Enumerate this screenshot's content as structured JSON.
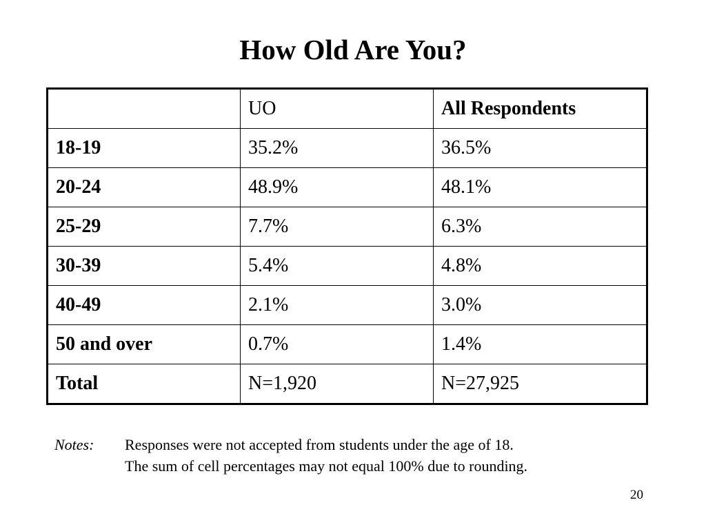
{
  "slide": {
    "title": "How Old Are You?",
    "page_number": "20"
  },
  "table": {
    "headers": [
      "",
      "UO",
      "All Respondents"
    ],
    "rows": [
      {
        "label": "18-19",
        "uo": "35.2%",
        "all": "36.5%"
      },
      {
        "label": "20-24",
        "uo": "48.9%",
        "all": "48.1%"
      },
      {
        "label": "25-29",
        "uo": "7.7%",
        "all": "6.3%"
      },
      {
        "label": "30-39",
        "uo": "5.4%",
        "all": "4.8%"
      },
      {
        "label": "40-49",
        "uo": "2.1%",
        "all": "3.0%"
      },
      {
        "label": "50 and over",
        "uo": "0.7%",
        "all": "1.4%"
      },
      {
        "label": "Total",
        "uo": "N=1,920",
        "all": "N=27,925"
      }
    ]
  },
  "notes": {
    "label": "Notes:",
    "lines": [
      "Responses were not accepted from students under the age of 18.",
      "The sum of cell percentages may not equal 100% due to rounding."
    ]
  }
}
